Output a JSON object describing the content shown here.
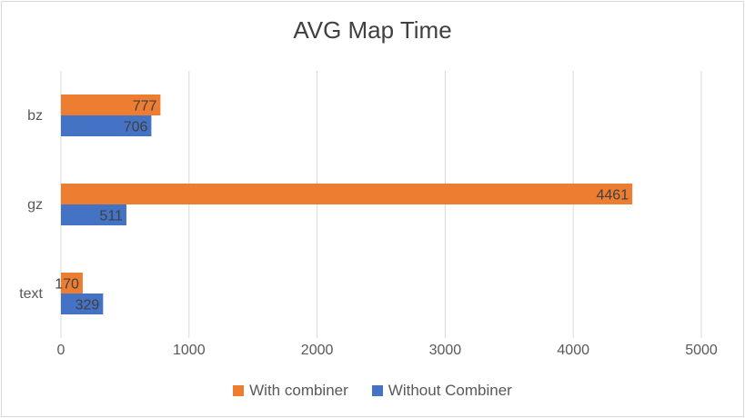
{
  "chart_data": {
    "type": "bar",
    "orientation": "horizontal",
    "title": "AVG Map Time",
    "categories": [
      "bz",
      "gz",
      "text"
    ],
    "series": [
      {
        "name": "With combiner",
        "color": "#ED7D31",
        "values": [
          777,
          4461,
          170
        ]
      },
      {
        "name": "Without Combiner",
        "color": "#4472C4",
        "values": [
          706,
          511,
          329
        ]
      }
    ],
    "xlim": [
      0,
      5000
    ],
    "xticks": [
      0,
      1000,
      2000,
      3000,
      4000,
      5000
    ],
    "grid": "vertical",
    "legend_position": "bottom",
    "data_labels": true
  }
}
